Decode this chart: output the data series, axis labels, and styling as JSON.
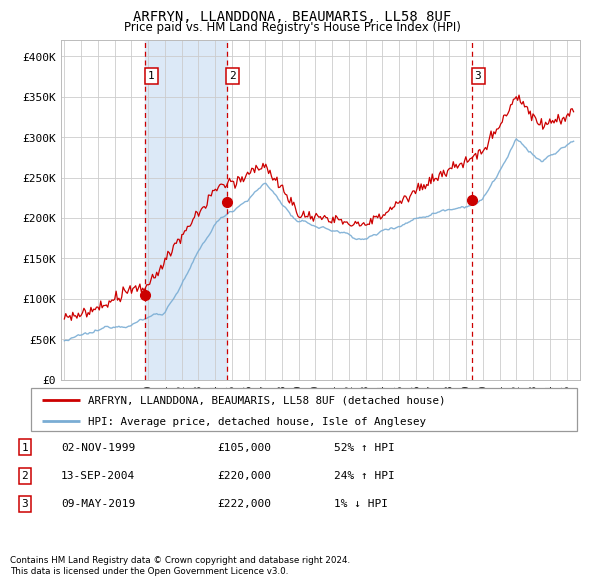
{
  "title": "ARFRYN, LLANDDONA, BEAUMARIS, LL58 8UF",
  "subtitle": "Price paid vs. HM Land Registry's House Price Index (HPI)",
  "legend_line1": "ARFRYN, LLANDDONA, BEAUMARIS, LL58 8UF (detached house)",
  "legend_line2": "HPI: Average price, detached house, Isle of Anglesey",
  "footer1": "Contains HM Land Registry data © Crown copyright and database right 2024.",
  "footer2": "This data is licensed under the Open Government Licence v3.0.",
  "transactions": [
    {
      "label": "1",
      "date": "02-NOV-1999",
      "price": 105000,
      "price_str": "£105,000",
      "pct": "52%",
      "dir": "↑",
      "x_year": 1999.84
    },
    {
      "label": "2",
      "date": "13-SEP-2004",
      "price": 220000,
      "price_str": "£220,000",
      "pct": "24%",
      "dir": "↑",
      "x_year": 2004.7
    },
    {
      "label": "3",
      "date": "09-MAY-2019",
      "price": 222000,
      "price_str": "£222,000",
      "pct": "1%",
      "dir": "↓",
      "x_year": 2019.36
    }
  ],
  "hpi_color": "#7aadd4",
  "price_color": "#cc0000",
  "vline_color": "#cc0000",
  "shade_color": "#dce9f7",
  "bg_color": "#ffffff",
  "grid_color": "#cccccc",
  "ylim": [
    0,
    420000
  ],
  "xlim_start": 1994.8,
  "xlim_end": 2025.8,
  "yticks": [
    0,
    50000,
    100000,
    150000,
    200000,
    250000,
    300000,
    350000,
    400000
  ],
  "ytick_labels": [
    "£0",
    "£50K",
    "£100K",
    "£150K",
    "£200K",
    "£250K",
    "£300K",
    "£350K",
    "£400K"
  ],
  "xticks": [
    1995,
    1996,
    1997,
    1998,
    1999,
    2000,
    2001,
    2002,
    2003,
    2004,
    2005,
    2006,
    2007,
    2008,
    2009,
    2010,
    2011,
    2012,
    2013,
    2014,
    2015,
    2016,
    2017,
    2018,
    2019,
    2020,
    2021,
    2022,
    2023,
    2024,
    2025
  ]
}
